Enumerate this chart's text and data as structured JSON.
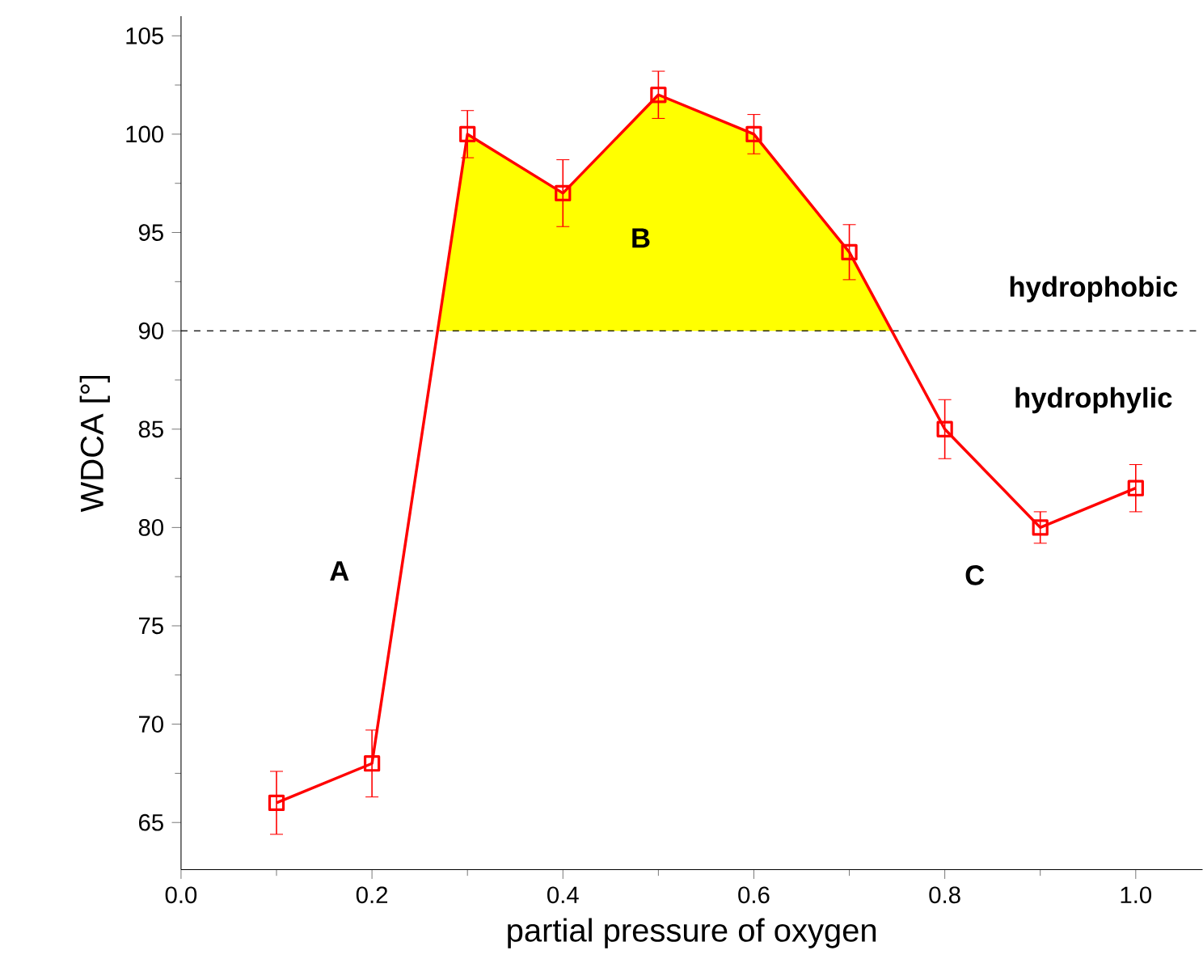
{
  "chart_data": {
    "type": "line",
    "xlabel": "partial pressure of oxygen",
    "ylabel": "WDCA [°]",
    "x": [
      0.1,
      0.2,
      0.3,
      0.4,
      0.5,
      0.6,
      0.7,
      0.8,
      0.9,
      1.0
    ],
    "series": [
      {
        "type": "area",
        "color": "#ffff00",
        "marker": "none",
        "x": [
          0.27,
          0.3,
          0.4,
          0.5,
          0.6,
          0.7,
          0.744
        ],
        "values": [
          90,
          100,
          97,
          102,
          100,
          94,
          90
        ]
      },
      {
        "color": "#ff0000",
        "values": [
          66,
          68,
          100,
          97,
          102,
          100,
          94,
          85,
          80,
          82
        ],
        "errors": [
          1.6,
          1.7,
          1.2,
          1.7,
          1.2,
          1,
          1.4,
          1.5,
          0.8,
          1.2
        ]
      }
    ],
    "marker": "square",
    "line_style": "solid",
    "grid": false,
    "xlim": [
      0,
      1.07
    ],
    "ylim": [
      62.6,
      106
    ],
    "xticks": [
      {
        "value": 0,
        "label": "0.0"
      },
      0.2,
      0.4,
      0.6,
      0.8,
      {
        "value": 1,
        "label": "1.0"
      }
    ],
    "yticks": [
      65,
      70,
      75,
      80,
      85,
      90,
      95,
      100,
      105
    ],
    "ref_lines": [
      {
        "axis": "y",
        "value": 90,
        "color": "#000000",
        "line_style": "dashed"
      }
    ],
    "annotations": [
      "A",
      "B",
      "C",
      "hydrophobic",
      "hydrophylic"
    ]
  }
}
